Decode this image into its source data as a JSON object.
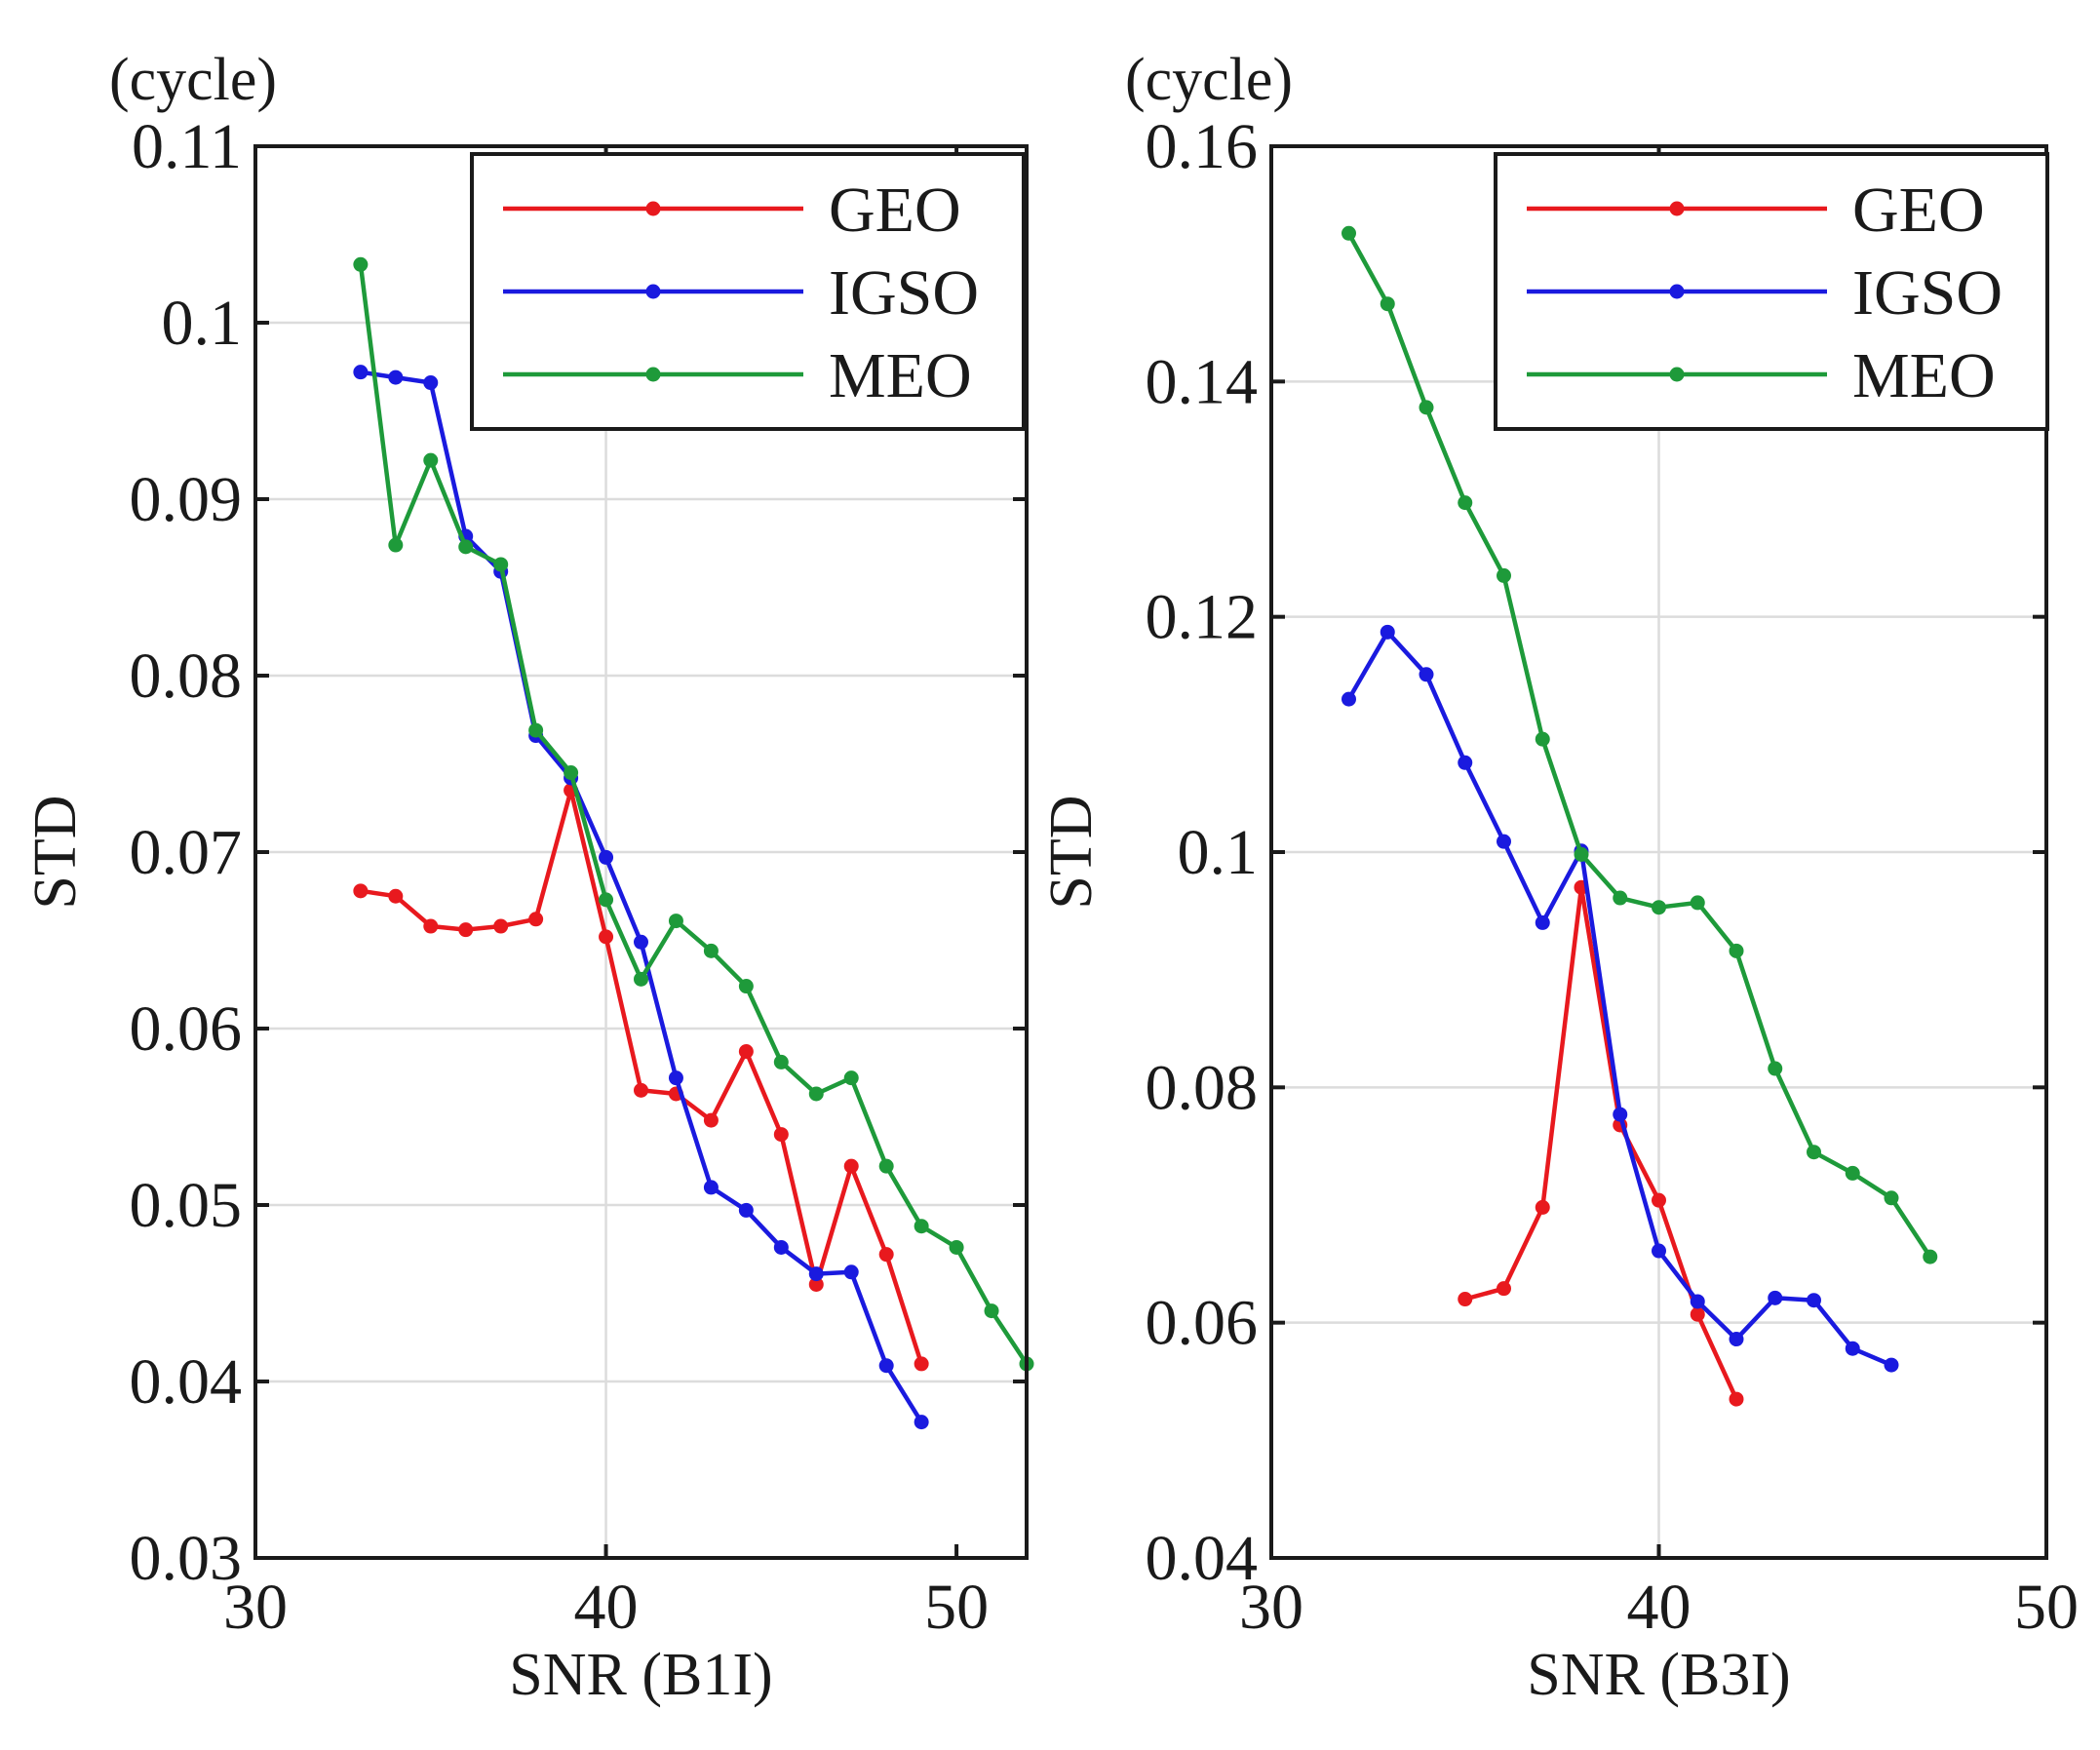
{
  "chart_data": [
    {
      "type": "line",
      "unit_label": "(cycle)",
      "xlabel": "SNR (B1I)",
      "ylabel": "STD",
      "xlim": [
        30,
        52
      ],
      "ylim": [
        0.03,
        0.11
      ],
      "xticks": [
        30,
        40,
        50
      ],
      "xtick_labels": [
        "30",
        "40",
        "50"
      ],
      "yticks": [
        0.03,
        0.04,
        0.05,
        0.06,
        0.07,
        0.08,
        0.09,
        0.1,
        0.11
      ],
      "ytick_labels": [
        "0.03",
        "0.04",
        "0.05",
        "0.06",
        "0.07",
        "0.08",
        "0.09",
        "0.1",
        "0.11"
      ],
      "grid": true,
      "legend_position": "top-right",
      "series": [
        {
          "name": "GEO",
          "color": "#e8191e",
          "x": [
            33,
            34,
            35,
            36,
            37,
            38,
            39,
            40,
            41,
            42,
            43,
            44,
            45,
            46,
            47,
            48,
            49
          ],
          "y": [
            0.0678,
            0.0675,
            0.0658,
            0.0656,
            0.0658,
            0.0662,
            0.0735,
            0.0652,
            0.0565,
            0.0563,
            0.0548,
            0.0587,
            0.054,
            0.0455,
            0.0522,
            0.0472,
            0.041
          ]
        },
        {
          "name": "IGSO",
          "color": "#1a1adf",
          "x": [
            33,
            34,
            35,
            36,
            37,
            38,
            39,
            40,
            41,
            42,
            43,
            44,
            45,
            46,
            47,
            48,
            49
          ],
          "y": [
            0.0972,
            0.0969,
            0.0966,
            0.0879,
            0.0859,
            0.0766,
            0.0742,
            0.0697,
            0.0649,
            0.0572,
            0.051,
            0.0497,
            0.0476,
            0.0461,
            0.0462,
            0.0409,
            0.0377
          ]
        },
        {
          "name": "MEO",
          "color": "#1e9a3a",
          "x": [
            33,
            34,
            35,
            36,
            37,
            38,
            39,
            40,
            41,
            42,
            43,
            44,
            45,
            46,
            47,
            48,
            49,
            50,
            51,
            52
          ],
          "y": [
            0.1033,
            0.0874,
            0.0922,
            0.0873,
            0.0863,
            0.0769,
            0.0745,
            0.0673,
            0.0628,
            0.0661,
            0.0644,
            0.0624,
            0.0581,
            0.0563,
            0.0572,
            0.0522,
            0.0488,
            0.0476,
            0.044,
            0.041
          ]
        }
      ]
    },
    {
      "type": "line",
      "unit_label": "(cycle)",
      "xlabel": "SNR (B3I)",
      "ylabel": "STD",
      "xlim": [
        30,
        50
      ],
      "ylim": [
        0.04,
        0.16
      ],
      "xticks": [
        30,
        40,
        50
      ],
      "xtick_labels": [
        "30",
        "40",
        "50"
      ],
      "yticks": [
        0.04,
        0.06,
        0.08,
        0.1,
        0.12,
        0.14,
        0.16
      ],
      "ytick_labels": [
        "0.04",
        "0.06",
        "0.08",
        "0.1",
        "0.12",
        "0.14",
        "0.16"
      ],
      "grid": true,
      "legend_position": "top-right",
      "series": [
        {
          "name": "GEO",
          "color": "#e8191e",
          "x": [
            35,
            36,
            37,
            38,
            39,
            40,
            41,
            42
          ],
          "y": [
            0.062,
            0.0629,
            0.0698,
            0.097,
            0.0768,
            0.0704,
            0.0607,
            0.0535
          ]
        },
        {
          "name": "IGSO",
          "color": "#1a1adf",
          "x": [
            32,
            33,
            34,
            35,
            36,
            37,
            38,
            39,
            40,
            41,
            42,
            43,
            44,
            45,
            46
          ],
          "y": [
            0.113,
            0.1187,
            0.1151,
            0.1076,
            0.1009,
            0.094,
            0.1001,
            0.0777,
            0.0661,
            0.0618,
            0.0586,
            0.0621,
            0.0619,
            0.0578,
            0.0564
          ]
        },
        {
          "name": "MEO",
          "color": "#1e9a3a",
          "x": [
            32,
            33,
            34,
            35,
            36,
            37,
            38,
            39,
            40,
            41,
            42,
            43,
            44,
            45,
            46,
            47
          ],
          "y": [
            0.1526,
            0.1466,
            0.1378,
            0.1297,
            0.1235,
            0.1096,
            0.0998,
            0.0961,
            0.0953,
            0.0957,
            0.0916,
            0.0816,
            0.0745,
            0.0727,
            0.0706,
            0.0656
          ]
        }
      ]
    }
  ]
}
